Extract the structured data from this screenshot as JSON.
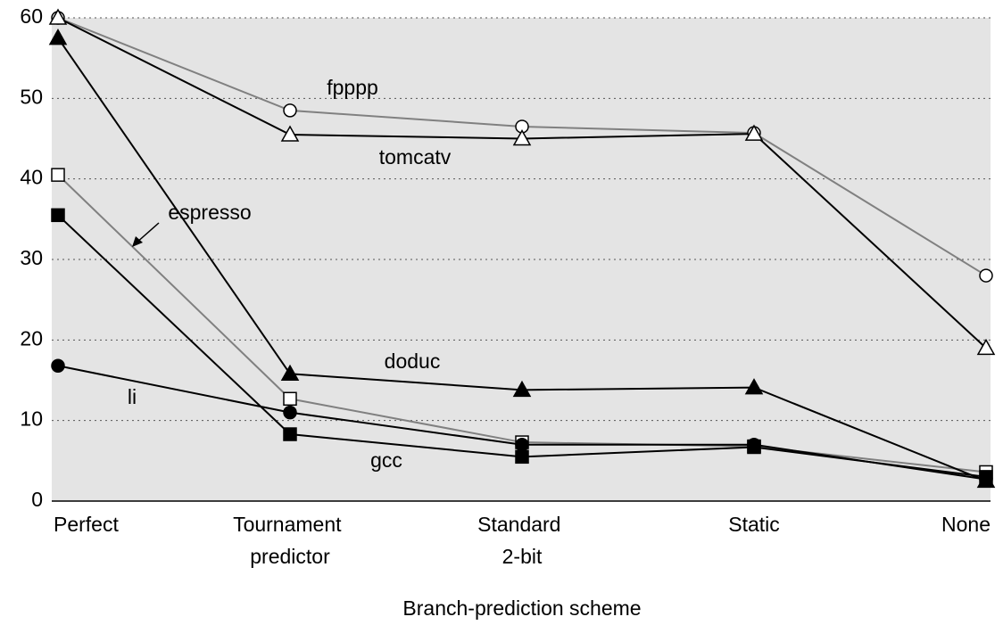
{
  "chart_data": {
    "type": "line",
    "x_label": "Branch-prediction scheme",
    "categories": [
      "Perfect",
      "Tournament predictor",
      "Standard 2-bit",
      "Static",
      "None"
    ],
    "ylim": [
      0,
      60
    ],
    "yticks": [
      0,
      10,
      20,
      30,
      40,
      50,
      60
    ],
    "grid": true,
    "background": "#e4e4e4",
    "series": [
      {
        "name": "fpppp",
        "color": "#808080",
        "marker": "circle",
        "filled": false,
        "values": [
          60,
          48.5,
          46.5,
          45.7,
          28
        ]
      },
      {
        "name": "tomcatv",
        "color": "#000000",
        "marker": "triangle",
        "filled": false,
        "values": [
          60,
          45.5,
          45,
          45.6,
          19
        ]
      },
      {
        "name": "espresso",
        "color": "#808080",
        "marker": "square",
        "filled": false,
        "values": [
          40.5,
          12.7,
          7.3,
          6.8,
          3.6
        ]
      },
      {
        "name": "doduc",
        "color": "#000000",
        "marker": "triangle",
        "filled": true,
        "values": [
          57.5,
          15.8,
          13.8,
          14.1,
          2.5
        ]
      },
      {
        "name": "li",
        "color": "#000000",
        "marker": "circle",
        "filled": true,
        "values": [
          16.8,
          11,
          7,
          7,
          2.7
        ]
      },
      {
        "name": "gcc",
        "color": "#000000",
        "marker": "square",
        "filled": true,
        "values": [
          35.5,
          8.3,
          5.5,
          6.7,
          3
        ]
      }
    ]
  }
}
